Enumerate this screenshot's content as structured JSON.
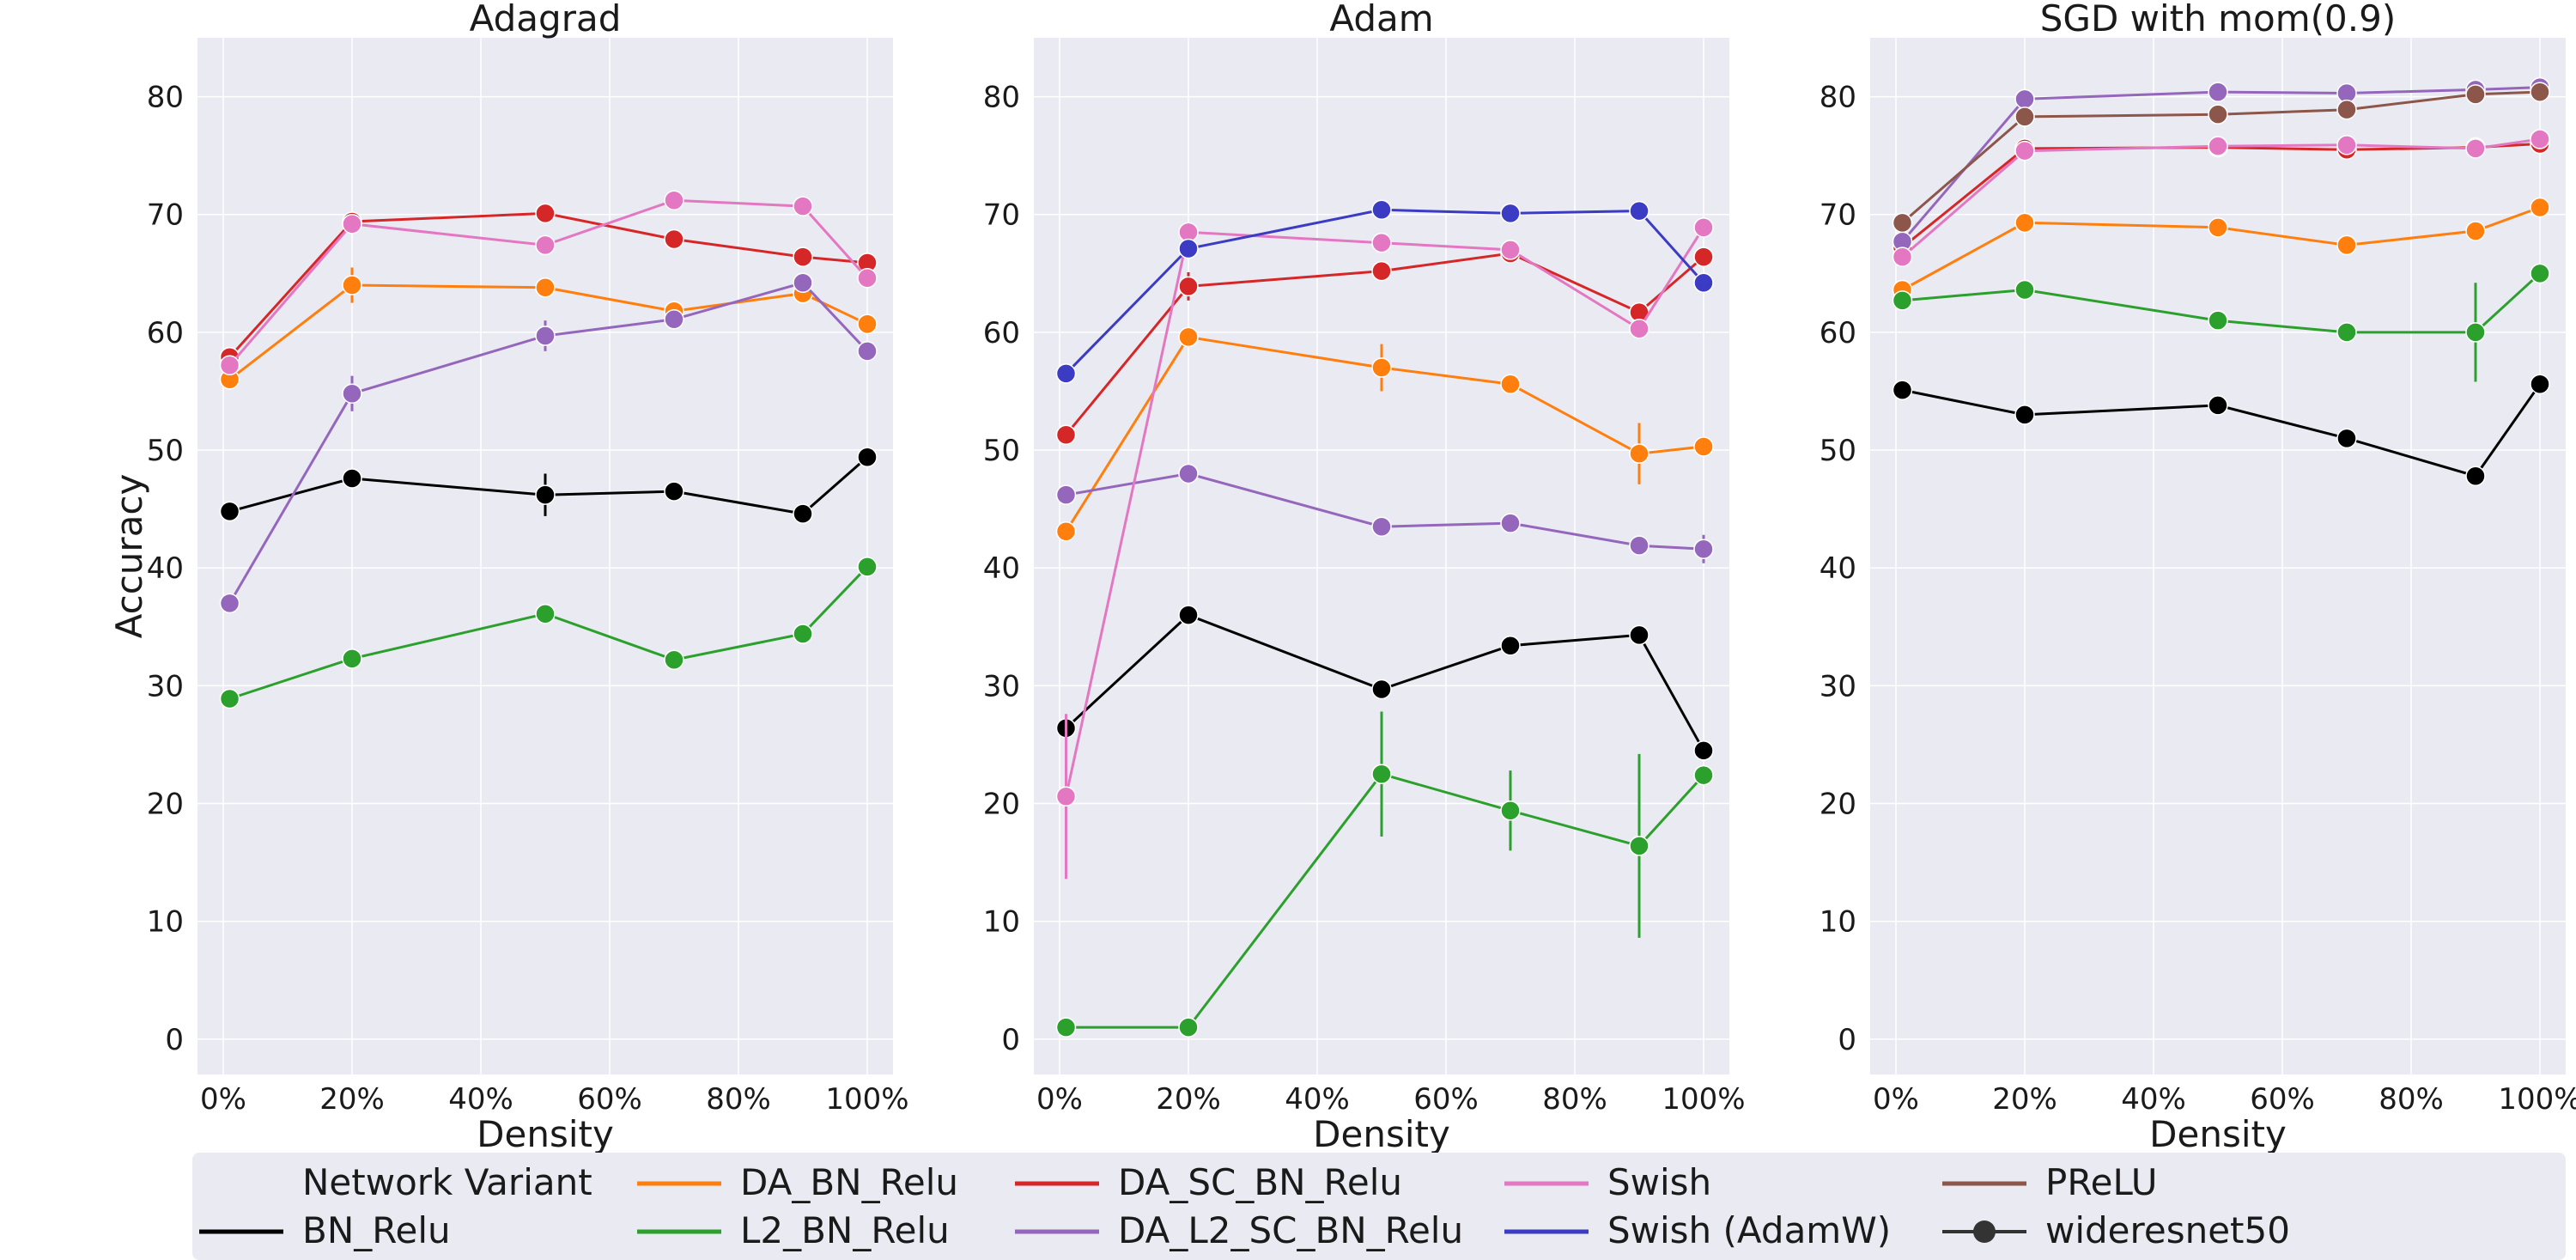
{
  "chart_data": [
    {
      "type": "line",
      "title": "Adagrad",
      "xlabel": "Density",
      "ylabel": "Accuracy",
      "xlim": [
        -4,
        104
      ],
      "ylim": [
        -3,
        85
      ],
      "xticks": [
        0,
        20,
        40,
        60,
        80,
        100
      ],
      "xtick_labels": [
        "0%",
        "20%",
        "40%",
        "60%",
        "80%",
        "100%"
      ],
      "yticks": [
        0,
        10,
        20,
        30,
        40,
        50,
        60,
        70,
        80
      ],
      "ytick_labels": [
        "0",
        "10",
        "20",
        "30",
        "40",
        "50",
        "60",
        "70",
        "80"
      ],
      "series": [
        {
          "name": "BN_Relu",
          "x": [
            1,
            20,
            50,
            70,
            90,
            100
          ],
          "y": [
            44.8,
            47.6,
            46.2,
            46.5,
            44.6,
            49.4
          ],
          "err": [
            0,
            0,
            1.8,
            0,
            0,
            0
          ]
        },
        {
          "name": "DA_BN_Relu",
          "x": [
            1,
            20,
            50,
            70,
            90,
            100
          ],
          "y": [
            56.0,
            64.0,
            63.8,
            61.8,
            63.3,
            60.7
          ],
          "err": [
            0,
            1.5,
            0,
            0,
            0,
            0
          ]
        },
        {
          "name": "L2_BN_Relu",
          "x": [
            1,
            20,
            50,
            70,
            90,
            100
          ],
          "y": [
            28.9,
            32.3,
            36.1,
            32.2,
            34.4,
            40.1
          ],
          "err": [
            0,
            0,
            0,
            0,
            0,
            0
          ]
        },
        {
          "name": "DA_SC_BN_Relu",
          "x": [
            1,
            20,
            50,
            70,
            90,
            100
          ],
          "y": [
            57.9,
            69.4,
            70.1,
            67.9,
            66.4,
            65.9
          ],
          "err": [
            0,
            0,
            0,
            0,
            0,
            0
          ]
        },
        {
          "name": "DA_L2_SC_BN_Relu",
          "x": [
            1,
            20,
            50,
            70,
            90,
            100
          ],
          "y": [
            37.0,
            54.8,
            59.7,
            61.1,
            64.2,
            58.4
          ],
          "err": [
            0,
            1.5,
            1.3,
            0,
            0,
            0
          ]
        },
        {
          "name": "Swish",
          "x": [
            1,
            20,
            50,
            70,
            90,
            100
          ],
          "y": [
            57.2,
            69.2,
            67.4,
            71.2,
            70.7,
            64.6
          ],
          "err": [
            0,
            0,
            0,
            0,
            0,
            0
          ]
        }
      ]
    },
    {
      "type": "line",
      "title": "Adam",
      "xlabel": "Density",
      "ylabel": "",
      "xlim": [
        -4,
        104
      ],
      "ylim": [
        -3,
        85
      ],
      "xticks": [
        0,
        20,
        40,
        60,
        80,
        100
      ],
      "xtick_labels": [
        "0%",
        "20%",
        "40%",
        "60%",
        "80%",
        "100%"
      ],
      "yticks": [
        0,
        10,
        20,
        30,
        40,
        50,
        60,
        70,
        80
      ],
      "ytick_labels": [
        "0",
        "10",
        "20",
        "30",
        "40",
        "50",
        "60",
        "70",
        "80"
      ],
      "series": [
        {
          "name": "BN_Relu",
          "x": [
            1,
            20,
            50,
            70,
            90,
            100
          ],
          "y": [
            26.4,
            36.0,
            29.7,
            33.4,
            34.3,
            24.5
          ],
          "err": [
            0,
            0,
            0,
            0,
            0,
            0
          ]
        },
        {
          "name": "DA_BN_Relu",
          "x": [
            1,
            20,
            50,
            70,
            90,
            100
          ],
          "y": [
            43.1,
            59.6,
            57.0,
            55.6,
            49.7,
            50.3
          ],
          "err": [
            0,
            0,
            2.0,
            0,
            2.6,
            0
          ]
        },
        {
          "name": "L2_BN_Relu",
          "x": [
            1,
            20,
            50,
            70,
            90,
            100
          ],
          "y": [
            1.0,
            1.0,
            22.5,
            19.4,
            16.4,
            22.4
          ],
          "err": [
            0,
            0,
            5.3,
            3.4,
            7.8,
            0
          ]
        },
        {
          "name": "DA_SC_BN_Relu",
          "x": [
            1,
            20,
            50,
            70,
            90,
            100
          ],
          "y": [
            51.3,
            63.9,
            65.2,
            66.7,
            61.7,
            66.4
          ],
          "err": [
            0,
            1.2,
            0,
            0,
            0,
            0
          ]
        },
        {
          "name": "DA_L2_SC_BN_Relu",
          "x": [
            1,
            20,
            50,
            70,
            90,
            100
          ],
          "y": [
            46.2,
            48.0,
            43.5,
            43.8,
            41.9,
            41.6
          ],
          "err": [
            0,
            0,
            0,
            0,
            0,
            1.2
          ]
        },
        {
          "name": "Swish",
          "x": [
            1,
            20,
            50,
            70,
            90,
            100
          ],
          "y": [
            20.6,
            68.5,
            67.6,
            67.0,
            60.3,
            68.9
          ],
          "err": [
            7.0,
            0,
            0,
            0,
            0,
            0
          ]
        },
        {
          "name": "Swish (AdamW)",
          "x": [
            1,
            20,
            50,
            70,
            90,
            100
          ],
          "y": [
            56.5,
            67.1,
            70.4,
            70.1,
            70.3,
            64.2
          ],
          "err": [
            0,
            0,
            0,
            0,
            0,
            0
          ]
        }
      ]
    },
    {
      "type": "line",
      "title": "SGD with mom(0.9)",
      "xlabel": "Density",
      "ylabel": "",
      "xlim": [
        -4,
        104
      ],
      "ylim": [
        -3,
        85
      ],
      "xticks": [
        0,
        20,
        40,
        60,
        80,
        100
      ],
      "xtick_labels": [
        "0%",
        "20%",
        "40%",
        "60%",
        "80%",
        "100%"
      ],
      "yticks": [
        0,
        10,
        20,
        30,
        40,
        50,
        60,
        70,
        80
      ],
      "ytick_labels": [
        "0",
        "10",
        "20",
        "30",
        "40",
        "50",
        "60",
        "70",
        "80"
      ],
      "series": [
        {
          "name": "BN_Relu",
          "x": [
            1,
            20,
            50,
            70,
            90,
            100
          ],
          "y": [
            55.1,
            53.0,
            53.8,
            51.0,
            47.8,
            55.6
          ],
          "err": [
            0,
            0,
            0,
            0,
            0,
            0
          ]
        },
        {
          "name": "DA_BN_Relu",
          "x": [
            1,
            20,
            50,
            70,
            90,
            100
          ],
          "y": [
            63.6,
            69.3,
            68.9,
            67.4,
            68.6,
            70.6
          ],
          "err": [
            0,
            0,
            0,
            0,
            0,
            0
          ]
        },
        {
          "name": "L2_BN_Relu",
          "x": [
            1,
            20,
            50,
            70,
            90,
            100
          ],
          "y": [
            62.7,
            63.6,
            61.0,
            60.0,
            60.0,
            65.0
          ],
          "err": [
            0,
            0,
            0,
            0,
            4.2,
            0
          ]
        },
        {
          "name": "DA_SC_BN_Relu",
          "x": [
            1,
            20,
            50,
            70,
            90,
            100
          ],
          "y": [
            67.2,
            75.6,
            75.7,
            75.5,
            75.7,
            76.0
          ],
          "err": [
            0,
            0,
            0,
            0,
            0,
            0
          ]
        },
        {
          "name": "DA_L2_SC_BN_Relu",
          "x": [
            1,
            20,
            50,
            70,
            90,
            100
          ],
          "y": [
            67.7,
            79.8,
            80.4,
            80.3,
            80.6,
            80.8
          ],
          "err": [
            0,
            0,
            0,
            0,
            0,
            0
          ]
        },
        {
          "name": "Swish",
          "x": [
            1,
            20,
            50,
            70,
            90,
            100
          ],
          "y": [
            66.4,
            75.4,
            75.8,
            75.9,
            75.6,
            76.4
          ],
          "err": [
            0,
            0,
            0,
            0,
            0,
            0
          ]
        },
        {
          "name": "PReLU",
          "x": [
            1,
            20,
            50,
            70,
            90,
            100
          ],
          "y": [
            69.3,
            78.3,
            78.5,
            78.9,
            80.2,
            80.4
          ],
          "err": [
            0,
            0,
            0,
            0,
            0,
            0
          ]
        }
      ]
    }
  ],
  "colors": {
    "BN_Relu": "#000000",
    "DA_BN_Relu": "#ff7f0e",
    "L2_BN_Relu": "#2ca02c",
    "DA_SC_BN_Relu": "#d62728",
    "DA_L2_SC_BN_Relu": "#9467bd",
    "Swish": "#e377c2",
    "Swish (AdamW)": "#3b3bc4",
    "PReLU": "#8c564b"
  },
  "legend": {
    "title": "Network Variant",
    "placement": "bottom",
    "items": [
      "BN_Relu",
      "DA_BN_Relu",
      "L2_BN_Relu",
      "DA_SC_BN_Relu",
      "DA_L2_SC_BN_Relu",
      "Swish",
      "Swish (AdamW)",
      "PReLU",
      "wideresnet50"
    ]
  }
}
